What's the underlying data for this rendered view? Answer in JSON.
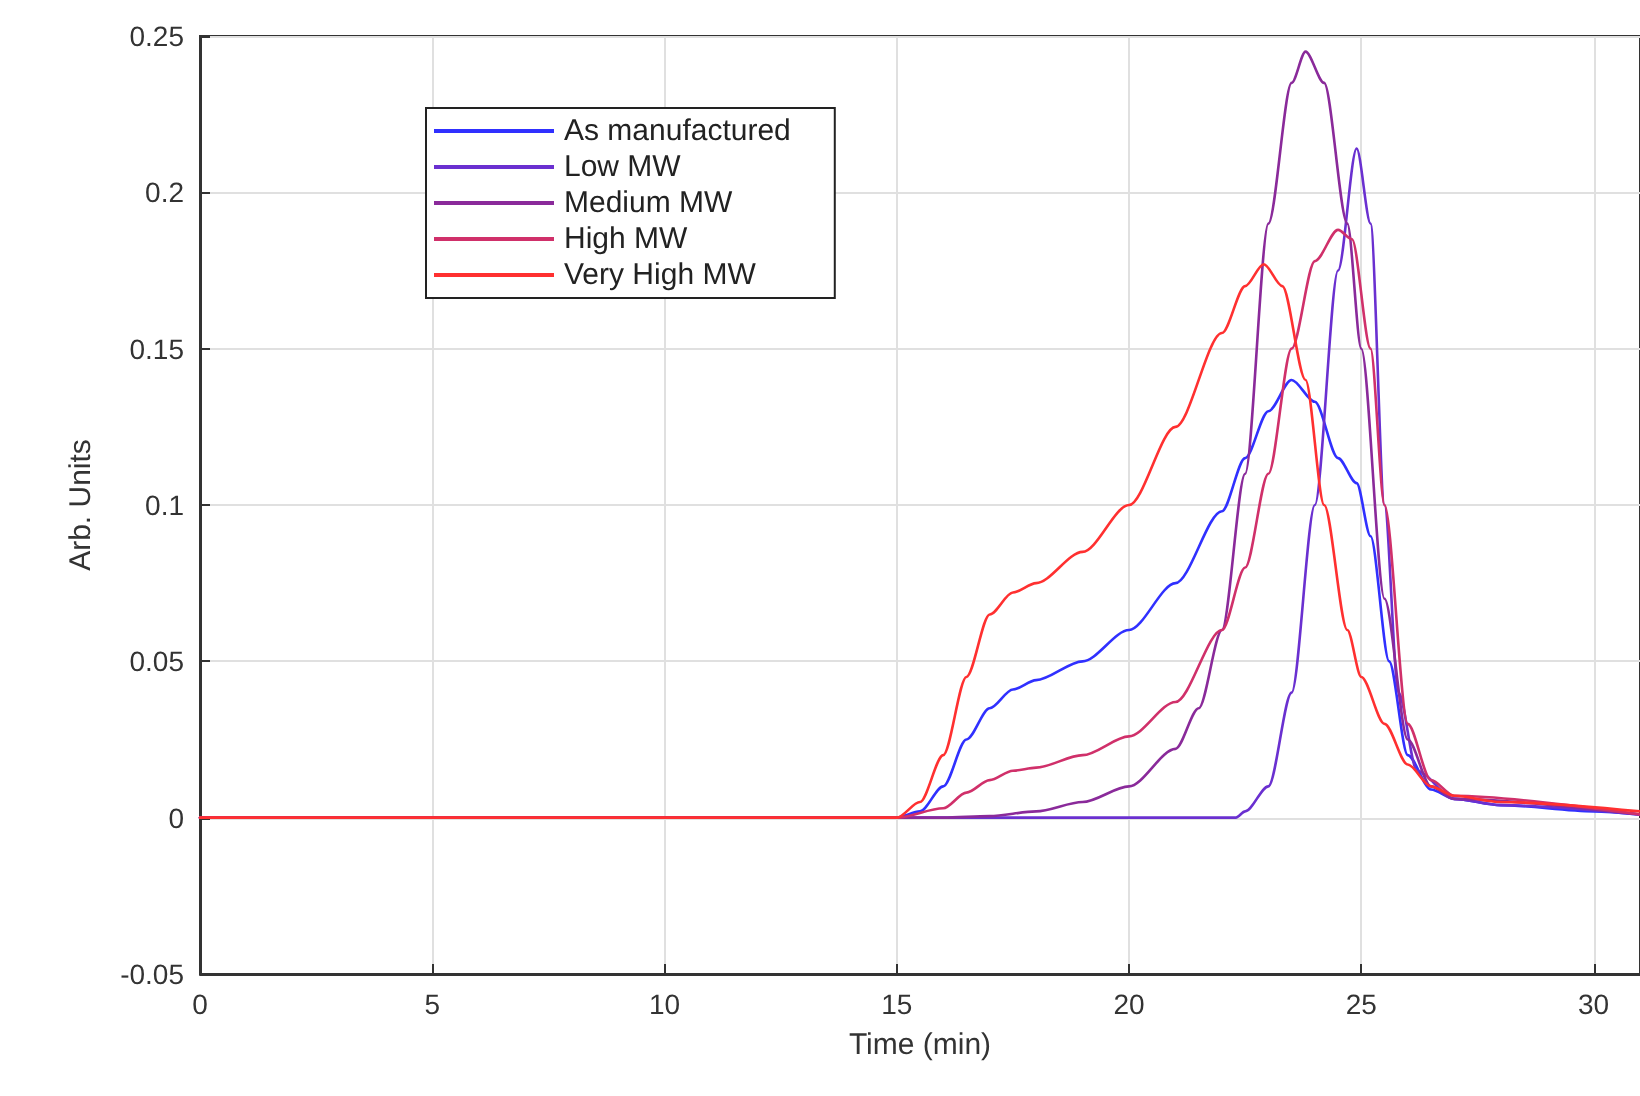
{
  "chart_data": {
    "type": "line",
    "xlabel": "Time (min)",
    "ylabel": "Arb. Units",
    "xlim": [
      0,
      31
    ],
    "xticks": [
      0,
      5,
      10,
      15,
      20,
      25,
      30
    ],
    "ylim": [
      -0.05,
      0.25
    ],
    "yticks": [
      -0.05,
      0,
      0.05,
      0.1,
      0.15,
      0.2,
      0.25
    ],
    "grid": true,
    "legend": "top left",
    "marker": "none",
    "line_style": "solid",
    "series": [
      {
        "name": "As manufactured",
        "color": "#3030ff",
        "x": [
          0,
          10,
          15,
          15.5,
          16,
          16.5,
          17,
          17.5,
          18,
          19,
          20,
          21,
          22,
          22.5,
          23,
          23.5,
          24,
          24.5,
          24.9,
          25.2,
          25.6,
          26,
          26.5,
          27,
          28,
          30,
          31
        ],
        "values": [
          0,
          0,
          0,
          0.002,
          0.01,
          0.025,
          0.035,
          0.041,
          0.044,
          0.05,
          0.06,
          0.075,
          0.098,
          0.115,
          0.13,
          0.14,
          0.133,
          0.115,
          0.107,
          0.09,
          0.05,
          0.02,
          0.009,
          0.006,
          0.004,
          0.002,
          0.001
        ]
      },
      {
        "name": "Low MW",
        "color": "#6a30d0",
        "x": [
          0,
          10,
          22.3,
          22.5,
          23,
          23.5,
          24,
          24.5,
          24.9,
          25.2,
          25.5,
          25.8,
          26.2,
          27,
          28,
          31
        ],
        "values": [
          0,
          0,
          0,
          0.002,
          0.01,
          0.04,
          0.1,
          0.175,
          0.214,
          0.19,
          0.1,
          0.04,
          0.015,
          0.006,
          0.004,
          0.001
        ]
      },
      {
        "name": "Medium MW",
        "color": "#8a2a9a",
        "x": [
          0,
          10,
          16,
          17,
          18,
          19,
          20,
          21,
          21.5,
          22,
          22.5,
          23,
          23.5,
          23.8,
          24.2,
          24.7,
          25,
          25.5,
          26,
          26.5,
          27,
          31
        ],
        "values": [
          0,
          0,
          0,
          0.0005,
          0.002,
          0.005,
          0.01,
          0.022,
          0.035,
          0.06,
          0.11,
          0.19,
          0.235,
          0.245,
          0.235,
          0.19,
          0.15,
          0.07,
          0.025,
          0.01,
          0.006,
          0.001
        ]
      },
      {
        "name": "High MW",
        "color": "#d0306a",
        "x": [
          0,
          10,
          15,
          16,
          16.5,
          17,
          17.5,
          18,
          19,
          20,
          21,
          22,
          22.5,
          23,
          23.5,
          24,
          24.5,
          24.8,
          25.2,
          25.5,
          26,
          26.5,
          27,
          31
        ],
        "values": [
          0,
          0,
          0,
          0.003,
          0.008,
          0.012,
          0.015,
          0.016,
          0.02,
          0.026,
          0.037,
          0.06,
          0.08,
          0.11,
          0.15,
          0.178,
          0.188,
          0.185,
          0.15,
          0.1,
          0.03,
          0.012,
          0.007,
          0.001
        ]
      },
      {
        "name": "Very High MW",
        "color": "#ff3030",
        "x": [
          0,
          10,
          15,
          15.5,
          16,
          16.5,
          17,
          17.5,
          18,
          19,
          20,
          21,
          22,
          22.5,
          22.9,
          23.3,
          23.8,
          24.2,
          24.7,
          25,
          25.5,
          26,
          26.5,
          27,
          28,
          31
        ],
        "values": [
          0,
          0,
          0,
          0.005,
          0.02,
          0.045,
          0.065,
          0.072,
          0.075,
          0.085,
          0.1,
          0.125,
          0.155,
          0.17,
          0.177,
          0.17,
          0.14,
          0.1,
          0.06,
          0.045,
          0.03,
          0.017,
          0.01,
          0.007,
          0.005,
          0.002
        ]
      }
    ]
  }
}
